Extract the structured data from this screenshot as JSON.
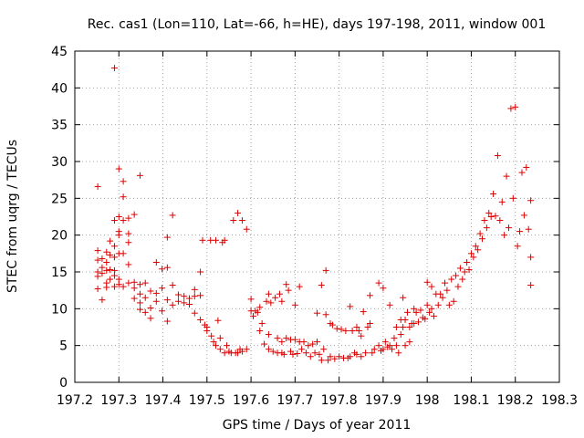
{
  "chart_data": {
    "type": "scatter",
    "title": "Rec. cas1 (Lon=110, Lat=-66, h=HE), days 197-198, 2011, window 001",
    "xlabel": "GPS time / Days of year 2011",
    "ylabel": "STEC from uqrg / TECUs",
    "xlim": [
      197.2,
      198.3
    ],
    "ylim": [
      0,
      45
    ],
    "x_ticks": [
      197.2,
      197.3,
      197.4,
      197.5,
      197.6,
      197.7,
      197.8,
      197.9,
      198,
      198.1,
      198.2,
      198.3
    ],
    "x_tick_labels": [
      "197.2",
      "197.3",
      "197.4",
      "197.5",
      "197.6",
      "197.7",
      "197.8",
      "197.9",
      "198",
      "198.1",
      "198.2",
      "198.3"
    ],
    "y_ticks": [
      0,
      5,
      10,
      15,
      20,
      25,
      30,
      35,
      40,
      45
    ],
    "y_tick_labels": [
      "0",
      "5",
      "10",
      "15",
      "20",
      "25",
      "30",
      "35",
      "40",
      "45"
    ],
    "grid": true,
    "marker": "+",
    "color": "#dd0000",
    "series": [
      {
        "name": "STEC",
        "points": [
          [
            197.252,
            26.6
          ],
          [
            197.252,
            17.9
          ],
          [
            197.252,
            16.6
          ],
          [
            197.252,
            15.0
          ],
          [
            197.252,
            14.4
          ],
          [
            197.252,
            12.7
          ],
          [
            197.262,
            16.8
          ],
          [
            197.262,
            15.6
          ],
          [
            197.262,
            14.8
          ],
          [
            197.262,
            11.2
          ],
          [
            197.272,
            17.7
          ],
          [
            197.272,
            16.3
          ],
          [
            197.272,
            15.2
          ],
          [
            197.272,
            13.5
          ],
          [
            197.272,
            12.9
          ],
          [
            197.28,
            19.2
          ],
          [
            197.28,
            17.3
          ],
          [
            197.28,
            15.3
          ],
          [
            197.28,
            14.0
          ],
          [
            197.29,
            42.7
          ],
          [
            197.29,
            22.0
          ],
          [
            197.29,
            18.5
          ],
          [
            197.29,
            17.0
          ],
          [
            197.29,
            15.2
          ],
          [
            197.29,
            14.5
          ],
          [
            197.29,
            13.0
          ],
          [
            197.3,
            29.0
          ],
          [
            197.3,
            22.5
          ],
          [
            197.3,
            20.5
          ],
          [
            197.3,
            20.0
          ],
          [
            197.3,
            17.5
          ],
          [
            197.3,
            14.0
          ],
          [
            197.3,
            13.3
          ],
          [
            197.31,
            27.3
          ],
          [
            197.31,
            25.2
          ],
          [
            197.31,
            22.0
          ],
          [
            197.31,
            17.5
          ],
          [
            197.31,
            13.0
          ],
          [
            197.322,
            22.3
          ],
          [
            197.322,
            20.2
          ],
          [
            197.322,
            19.0
          ],
          [
            197.322,
            16.0
          ],
          [
            197.322,
            13.5
          ],
          [
            197.335,
            22.8
          ],
          [
            197.335,
            13.6
          ],
          [
            197.335,
            12.8
          ],
          [
            197.335,
            11.4
          ],
          [
            197.348,
            28.1
          ],
          [
            197.348,
            13.3
          ],
          [
            197.348,
            12.0
          ],
          [
            197.348,
            10.8
          ],
          [
            197.348,
            9.9
          ],
          [
            197.36,
            13.5
          ],
          [
            197.36,
            11.5
          ],
          [
            197.36,
            9.5
          ],
          [
            197.372,
            12.4
          ],
          [
            197.372,
            10.1
          ],
          [
            197.372,
            8.7
          ],
          [
            197.385,
            16.3
          ],
          [
            197.385,
            12.1
          ],
          [
            197.385,
            11.0
          ],
          [
            197.398,
            15.4
          ],
          [
            197.398,
            12.8
          ],
          [
            197.398,
            9.7
          ],
          [
            197.41,
            19.7
          ],
          [
            197.41,
            15.6
          ],
          [
            197.41,
            11.2
          ],
          [
            197.41,
            8.3
          ],
          [
            197.422,
            22.7
          ],
          [
            197.422,
            13.2
          ],
          [
            197.422,
            10.5
          ],
          [
            197.435,
            11.9
          ],
          [
            197.435,
            11.0
          ],
          [
            197.448,
            11.7
          ],
          [
            197.448,
            10.8
          ],
          [
            197.46,
            11.4
          ],
          [
            197.46,
            10.6
          ],
          [
            197.472,
            12.6
          ],
          [
            197.472,
            11.7
          ],
          [
            197.472,
            9.4
          ],
          [
            197.485,
            15.0
          ],
          [
            197.485,
            11.8
          ],
          [
            197.485,
            8.5
          ],
          [
            197.49,
            19.3
          ],
          [
            197.495,
            7.8
          ],
          [
            197.5,
            7.0
          ],
          [
            197.5,
            7.5
          ],
          [
            197.508,
            19.3
          ],
          [
            197.51,
            6.3
          ],
          [
            197.515,
            5.5
          ],
          [
            197.52,
            19.3
          ],
          [
            197.52,
            5.0
          ],
          [
            197.525,
            8.4
          ],
          [
            197.53,
            6.0
          ],
          [
            197.53,
            4.5
          ],
          [
            197.535,
            19.0
          ],
          [
            197.54,
            19.3
          ],
          [
            197.54,
            4.0
          ],
          [
            197.545,
            5.0
          ],
          [
            197.55,
            4.2
          ],
          [
            197.555,
            4.0
          ],
          [
            197.56,
            22.0
          ],
          [
            197.565,
            4.0
          ],
          [
            197.57,
            23.0
          ],
          [
            197.57,
            4.0
          ],
          [
            197.575,
            4.5
          ],
          [
            197.58,
            22.0
          ],
          [
            197.58,
            4.2
          ],
          [
            197.59,
            20.8
          ],
          [
            197.59,
            4.5
          ],
          [
            197.6,
            11.3
          ],
          [
            197.6,
            9.7
          ],
          [
            197.605,
            9.0
          ],
          [
            197.61,
            9.7
          ],
          [
            197.615,
            9.5
          ],
          [
            197.62,
            10.2
          ],
          [
            197.62,
            7.0
          ],
          [
            197.625,
            8.0
          ],
          [
            197.63,
            5.2
          ],
          [
            197.635,
            11.0
          ],
          [
            197.64,
            12.0
          ],
          [
            197.64,
            6.5
          ],
          [
            197.64,
            4.5
          ],
          [
            197.645,
            10.8
          ],
          [
            197.65,
            4.2
          ],
          [
            197.655,
            11.5
          ],
          [
            197.66,
            6.0
          ],
          [
            197.66,
            4.0
          ],
          [
            197.665,
            12.0
          ],
          [
            197.67,
            11.0
          ],
          [
            197.67,
            5.5
          ],
          [
            197.67,
            4.0
          ],
          [
            197.675,
            3.8
          ],
          [
            197.68,
            13.3
          ],
          [
            197.68,
            6.0
          ],
          [
            197.685,
            12.5
          ],
          [
            197.69,
            5.8
          ],
          [
            197.69,
            4.2
          ],
          [
            197.695,
            3.8
          ],
          [
            197.7,
            5.8
          ],
          [
            197.7,
            10.5
          ],
          [
            197.705,
            3.9
          ],
          [
            197.71,
            13.0
          ],
          [
            197.71,
            5.5
          ],
          [
            197.715,
            4.5
          ],
          [
            197.72,
            5.5
          ],
          [
            197.725,
            4.0
          ],
          [
            197.73,
            5.0
          ],
          [
            197.735,
            3.5
          ],
          [
            197.74,
            5.2
          ],
          [
            197.745,
            4.0
          ],
          [
            197.75,
            9.4
          ],
          [
            197.75,
            5.5
          ],
          [
            197.755,
            3.8
          ],
          [
            197.76,
            13.2
          ],
          [
            197.76,
            3.0
          ],
          [
            197.765,
            4.5
          ],
          [
            197.77,
            15.2
          ],
          [
            197.77,
            9.2
          ],
          [
            197.775,
            3.0
          ],
          [
            197.78,
            8.0
          ],
          [
            197.78,
            3.5
          ],
          [
            197.785,
            7.8
          ],
          [
            197.79,
            3.2
          ],
          [
            197.795,
            7.3
          ],
          [
            197.8,
            3.5
          ],
          [
            197.805,
            7.2
          ],
          [
            197.81,
            3.3
          ],
          [
            197.815,
            7.0
          ],
          [
            197.82,
            3.3
          ],
          [
            197.825,
            10.3
          ],
          [
            197.825,
            3.5
          ],
          [
            197.83,
            7.0
          ],
          [
            197.835,
            4.0
          ],
          [
            197.84,
            7.5
          ],
          [
            197.84,
            3.8
          ],
          [
            197.845,
            7.0
          ],
          [
            197.85,
            6.3
          ],
          [
            197.85,
            3.5
          ],
          [
            197.855,
            9.6
          ],
          [
            197.86,
            4.0
          ],
          [
            197.865,
            7.5
          ],
          [
            197.87,
            11.8
          ],
          [
            197.87,
            8.0
          ],
          [
            197.875,
            4.0
          ],
          [
            197.88,
            4.5
          ],
          [
            197.89,
            13.5
          ],
          [
            197.89,
            5.0
          ],
          [
            197.895,
            4.3
          ],
          [
            197.9,
            12.8
          ],
          [
            197.9,
            4.5
          ],
          [
            197.905,
            5.5
          ],
          [
            197.91,
            4.8
          ],
          [
            197.915,
            10.5
          ],
          [
            197.915,
            5.0
          ],
          [
            197.92,
            4.5
          ],
          [
            197.925,
            6.0
          ],
          [
            197.93,
            7.5
          ],
          [
            197.93,
            5.0
          ],
          [
            197.935,
            4.0
          ],
          [
            197.94,
            8.5
          ],
          [
            197.94,
            6.5
          ],
          [
            197.945,
            11.5
          ],
          [
            197.945,
            7.5
          ],
          [
            197.95,
            8.5
          ],
          [
            197.95,
            5.0
          ],
          [
            197.955,
            9.5
          ],
          [
            197.96,
            7.5
          ],
          [
            197.96,
            5.5
          ],
          [
            197.965,
            8.0
          ],
          [
            197.97,
            10.0
          ],
          [
            197.97,
            8.0
          ],
          [
            197.975,
            9.5
          ],
          [
            197.98,
            8.2
          ],
          [
            197.985,
            9.8
          ],
          [
            197.99,
            8.8
          ],
          [
            197.995,
            8.6
          ],
          [
            198.0,
            13.6
          ],
          [
            198.0,
            10.5
          ],
          [
            198.005,
            9.5
          ],
          [
            198.01,
            13.0
          ],
          [
            198.01,
            10.0
          ],
          [
            198.015,
            9.0
          ],
          [
            198.02,
            12.0
          ],
          [
            198.025,
            10.5
          ],
          [
            198.03,
            12.0
          ],
          [
            198.035,
            11.5
          ],
          [
            198.04,
            13.5
          ],
          [
            198.045,
            12.5
          ],
          [
            198.05,
            10.5
          ],
          [
            198.055,
            14.0
          ],
          [
            198.06,
            11.0
          ],
          [
            198.065,
            14.5
          ],
          [
            198.07,
            13.0
          ],
          [
            198.075,
            15.5
          ],
          [
            198.08,
            14.0
          ],
          [
            198.085,
            15.0
          ],
          [
            198.09,
            16.3
          ],
          [
            198.095,
            15.3
          ],
          [
            198.1,
            17.5
          ],
          [
            198.105,
            17.0
          ],
          [
            198.11,
            18.5
          ],
          [
            198.115,
            18.0
          ],
          [
            198.12,
            20.2
          ],
          [
            198.125,
            19.5
          ],
          [
            198.13,
            22.0
          ],
          [
            198.135,
            21.0
          ],
          [
            198.14,
            23.0
          ],
          [
            198.145,
            22.5
          ],
          [
            198.15,
            25.6
          ],
          [
            198.155,
            22.6
          ],
          [
            198.16,
            30.8
          ],
          [
            198.165,
            22.0
          ],
          [
            198.17,
            24.5
          ],
          [
            198.175,
            20.0
          ],
          [
            198.18,
            28.0
          ],
          [
            198.185,
            21.0
          ],
          [
            198.19,
            37.2
          ],
          [
            198.195,
            25.0
          ],
          [
            198.2,
            37.4
          ],
          [
            198.205,
            18.5
          ],
          [
            198.21,
            20.5
          ],
          [
            198.215,
            28.5
          ],
          [
            198.22,
            22.7
          ],
          [
            198.225,
            29.2
          ],
          [
            198.23,
            20.8
          ],
          [
            198.235,
            24.7
          ],
          [
            198.235,
            17.0
          ],
          [
            198.235,
            13.2
          ]
        ]
      }
    ]
  }
}
